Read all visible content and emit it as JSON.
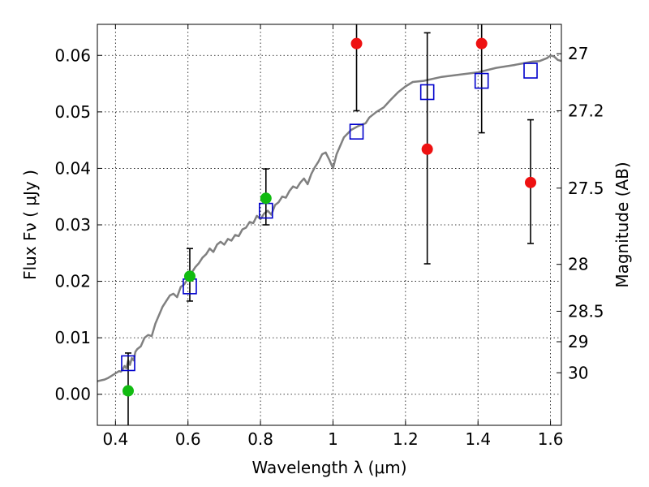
{
  "chart_data": {
    "type": "scatter",
    "xlabel": "Wavelength  λ (μm)",
    "ylabel": "Flux  Fν  ( μJy )",
    "y2label": "Magnitude (AB)",
    "xlim": [
      0.35,
      1.63
    ],
    "ylim": [
      -0.0055,
      0.0655
    ],
    "grid": true,
    "x_ticks": [
      0.4,
      0.6,
      0.8,
      1.0,
      1.2,
      1.4,
      1.6
    ],
    "x_tick_labels": [
      "0.4",
      "0.6",
      "0.8",
      "1",
      "1.2",
      "1.4",
      "1.6"
    ],
    "y_ticks": [
      0.0,
      0.01,
      0.02,
      0.03,
      0.04,
      0.05,
      0.06
    ],
    "y_tick_labels": [
      "0.00",
      "0.01",
      "0.02",
      "0.03",
      "0.04",
      "0.05",
      "0.06"
    ],
    "y2_ticks": [
      {
        "label": "27",
        "flux": 0.0603
      },
      {
        "label": "27.2",
        "flux": 0.0502
      },
      {
        "label": "27.5",
        "flux": 0.0365
      },
      {
        "label": "28",
        "flux": 0.023
      },
      {
        "label": "28.5",
        "flux": 0.0147
      },
      {
        "label": "29",
        "flux": 0.0093
      },
      {
        "label": "30",
        "flux": 0.0038
      }
    ],
    "series": [
      {
        "kind": "line",
        "color": "#808080",
        "x": [
          0.35,
          0.37,
          0.38,
          0.39,
          0.4,
          0.41,
          0.415,
          0.42,
          0.425,
          0.43,
          0.435,
          0.44,
          0.445,
          0.45,
          0.455,
          0.46,
          0.47,
          0.48,
          0.49,
          0.5,
          0.51,
          0.52,
          0.53,
          0.54,
          0.55,
          0.56,
          0.57,
          0.58,
          0.59,
          0.6,
          0.61,
          0.62,
          0.63,
          0.64,
          0.65,
          0.66,
          0.67,
          0.68,
          0.69,
          0.7,
          0.71,
          0.72,
          0.73,
          0.74,
          0.75,
          0.76,
          0.77,
          0.78,
          0.79,
          0.8,
          0.81,
          0.82,
          0.83,
          0.84,
          0.85,
          0.86,
          0.87,
          0.88,
          0.89,
          0.9,
          0.91,
          0.92,
          0.93,
          0.94,
          0.95,
          0.96,
          0.97,
          0.98,
          0.99,
          1.0,
          1.01,
          1.02,
          1.03,
          1.05,
          1.07,
          1.09,
          1.1,
          1.12,
          1.14,
          1.16,
          1.18,
          1.2,
          1.22,
          1.25,
          1.3,
          1.35,
          1.4,
          1.45,
          1.5,
          1.55,
          1.57,
          1.59,
          1.6,
          1.61,
          1.62,
          1.63
        ],
        "y": [
          0.0023,
          0.0026,
          0.0029,
          0.0033,
          0.0037,
          0.0041,
          0.004,
          0.0044,
          0.005,
          0.0046,
          0.006,
          0.0052,
          0.0064,
          0.006,
          0.0075,
          0.008,
          0.0085,
          0.01,
          0.0105,
          0.0103,
          0.0125,
          0.014,
          0.0155,
          0.0165,
          0.0175,
          0.0178,
          0.0172,
          0.019,
          0.0195,
          0.0205,
          0.0215,
          0.0225,
          0.0232,
          0.0242,
          0.0248,
          0.0258,
          0.0252,
          0.0265,
          0.027,
          0.0265,
          0.0275,
          0.0272,
          0.0282,
          0.028,
          0.0292,
          0.0295,
          0.0305,
          0.0303,
          0.0316,
          0.031,
          0.032,
          0.0325,
          0.0318,
          0.0335,
          0.034,
          0.035,
          0.0348,
          0.036,
          0.0368,
          0.0365,
          0.0375,
          0.0382,
          0.0372,
          0.039,
          0.0402,
          0.0412,
          0.0425,
          0.0428,
          0.0415,
          0.04,
          0.0425,
          0.044,
          0.0455,
          0.0468,
          0.0475,
          0.048,
          0.049,
          0.05,
          0.0508,
          0.0522,
          0.0535,
          0.0545,
          0.0553,
          0.0555,
          0.0562,
          0.0566,
          0.057,
          0.0578,
          0.0583,
          0.0589,
          0.059,
          0.0595,
          0.06,
          0.0598,
          0.0592,
          0.059
        ]
      },
      {
        "kind": "markers",
        "marker": "open-square",
        "color": "#0000cc",
        "x": [
          0.435,
          0.605,
          0.815,
          1.065,
          1.26,
          1.41,
          1.545
        ],
        "y": [
          0.0055,
          0.0191,
          0.0325,
          0.0465,
          0.0535,
          0.0555,
          0.0573
        ]
      },
      {
        "kind": "markers",
        "marker": "filled-circle",
        "color": "#11bb11",
        "x": [
          0.435,
          0.605,
          0.815
        ],
        "y": [
          0.0006,
          0.0209,
          0.0347
        ],
        "yerr_low": [
          0.0069,
          0.0044,
          0.0047
        ],
        "yerr_high": [
          0.0067,
          0.0049,
          0.0052
        ]
      },
      {
        "kind": "markers",
        "marker": "filled-circle",
        "color": "#ee1111",
        "x": [
          1.065,
          1.26,
          1.41,
          1.545
        ],
        "y": [
          0.0621,
          0.0434,
          0.0621,
          0.0375
        ],
        "yerr_low": [
          0.0119,
          0.0203,
          0.0158,
          0.0108
        ],
        "yerr_high": [
          0.0119,
          0.0206,
          0.0158,
          0.0111
        ]
      }
    ]
  }
}
